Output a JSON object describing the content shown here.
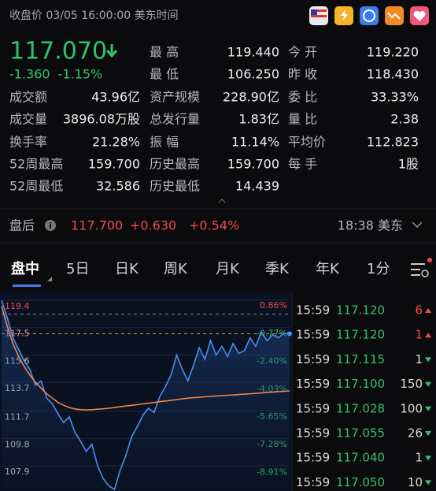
{
  "header": {
    "title": "收盘价 03/05 16:00:00 美东时间"
  },
  "quote": {
    "price": "117.070",
    "change": "-1.360",
    "change_pct": "-1.15%",
    "color": "#2fc46f"
  },
  "stats": {
    "rows": [
      {
        "cells": [
          {
            "label": "最 高",
            "value": "119.440",
            "color": "#f04a4a"
          },
          {
            "label": "今 开",
            "value": "119.220",
            "color": "#f04a4a"
          }
        ]
      },
      {
        "cells": [
          {
            "label": "最 低",
            "value": "106.250",
            "color": "#2fc46f"
          },
          {
            "label": "昨 收",
            "value": "118.430"
          }
        ]
      },
      {
        "cells": [
          {
            "label": "成交额",
            "value": "43.96亿"
          },
          {
            "label": "资产规模",
            "value": "228.90亿"
          },
          {
            "label": "委 比",
            "value": "33.33%"
          }
        ]
      },
      {
        "cells": [
          {
            "label": "成交量",
            "value": "3896.08万股"
          },
          {
            "label": "总发行量",
            "value": "1.83亿"
          },
          {
            "label": "量 比",
            "value": "2.38"
          }
        ]
      },
      {
        "cells": [
          {
            "label": "换手率",
            "value": "21.28%"
          },
          {
            "label": "振 幅",
            "value": "11.14%"
          },
          {
            "label": "平均价",
            "value": "112.823"
          }
        ]
      },
      {
        "cells": [
          {
            "label": "52周最高",
            "value": "159.700"
          },
          {
            "label": "历史最高",
            "value": "159.700"
          },
          {
            "label": "每 手",
            "value": "1股"
          }
        ]
      },
      {
        "cells": [
          {
            "label": "52周最低",
            "value": "32.586"
          },
          {
            "label": "历史最低",
            "value": "14.439"
          }
        ]
      }
    ]
  },
  "after_hours": {
    "label": "盘后",
    "price": "117.700",
    "change": "+0.630",
    "change_pct": "+0.54%",
    "time": "18:38 美东",
    "color": "#f04a4a"
  },
  "tabs": [
    "盘中",
    "5日",
    "日K",
    "周K",
    "月K",
    "季K",
    "年K",
    "1分"
  ],
  "chart_data": {
    "type": "line",
    "ylim": [
      106.15,
      120.0
    ],
    "yticks": [
      119.4,
      117.5,
      115.6,
      113.7,
      111.7,
      109.8,
      107.9
    ],
    "y2lim": [
      -10.37,
      1.33
    ],
    "y2ticks": [
      {
        "value": 0.86,
        "label": "0.86%"
      },
      {
        "value": -0.77,
        "label": "-0.77%"
      },
      {
        "value": -2.4,
        "label": "-2.40%"
      },
      {
        "value": -4.03,
        "label": "-4.03%"
      },
      {
        "value": -5.65,
        "label": "-5.65%"
      },
      {
        "value": -7.28,
        "label": "-7.28%"
      },
      {
        "value": -8.91,
        "label": "-8.91%"
      }
    ],
    "prev_close": 118.43,
    "last_price": 117.07,
    "series": [
      {
        "color": "#4a8df0",
        "values": [
          119.4,
          118.2,
          116.8,
          116.0,
          115.2,
          114.6,
          113.5,
          113.8,
          112.6,
          112.2,
          111.5,
          110.9,
          111.3,
          110.2,
          109.6,
          108.9,
          109.4,
          107.9,
          107.0,
          106.5,
          106.25,
          107.6,
          108.6,
          109.9,
          110.6,
          111.4,
          111.9,
          111.6,
          112.7,
          113.4,
          114.2,
          115.6,
          114.6,
          113.8,
          114.9,
          116.1,
          115.3,
          116.6,
          115.6,
          116.2,
          115.5,
          116.4,
          115.7,
          115.9,
          116.8,
          116.2,
          117.2,
          116.6,
          117.0,
          116.8,
          117.1,
          117.07
        ]
      },
      {
        "color": "#e8874a",
        "values": [
          119.0,
          117.6,
          116.4,
          115.5,
          114.8,
          114.2,
          113.7,
          113.3,
          112.9,
          112.6,
          112.3,
          112.1,
          111.95,
          111.85,
          111.8,
          111.78,
          111.8,
          111.83,
          111.86,
          111.9,
          111.95,
          112.0,
          112.05,
          112.1,
          112.15,
          112.2,
          112.25,
          112.3,
          112.35,
          112.4,
          112.45,
          112.5,
          112.55,
          112.6,
          112.63,
          112.66,
          112.69,
          112.72,
          112.75,
          112.78,
          112.8,
          112.82,
          112.85,
          112.88,
          112.9,
          112.93,
          112.96,
          112.99,
          113.02,
          113.05,
          113.08,
          113.1
        ]
      }
    ]
  },
  "trades": [
    {
      "time": "15:59",
      "price": "117.120",
      "volume": "6",
      "side": "buy"
    },
    {
      "time": "15:59",
      "price": "117.120",
      "volume": "1",
      "side": "buy"
    },
    {
      "time": "15:59",
      "price": "117.115",
      "volume": "1",
      "side": "sell"
    },
    {
      "time": "15:59",
      "price": "117.100",
      "volume": "150",
      "side": "sell"
    },
    {
      "time": "15:59",
      "price": "117.028",
      "volume": "100",
      "side": "sell"
    },
    {
      "time": "15:59",
      "price": "117.055",
      "volume": "26",
      "side": "sell"
    },
    {
      "time": "15:59",
      "price": "117.040",
      "volume": "1",
      "side": "sell"
    },
    {
      "time": "15:59",
      "price": "117.050",
      "volume": "10",
      "side": "sell"
    }
  ]
}
